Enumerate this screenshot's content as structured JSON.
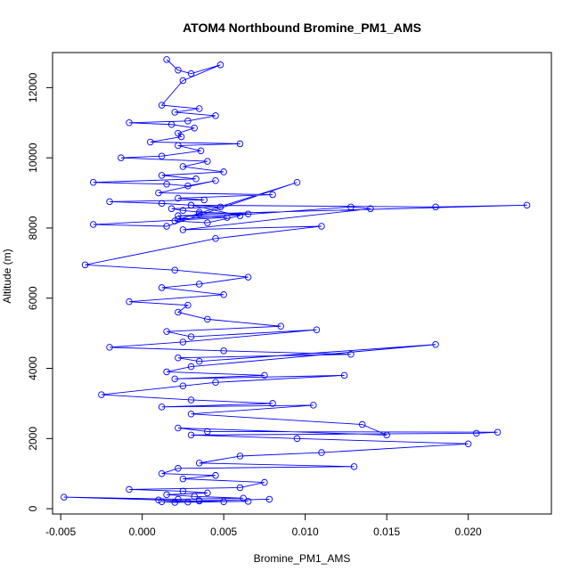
{
  "chart_data": {
    "type": "scatter",
    "title": "ATOM4 Northbound Bromine_PM1_AMS",
    "xlabel": "Bromine_PM1_AMS",
    "ylabel": "Altitude (m)",
    "xlim": [
      -0.0055,
      0.0251
    ],
    "ylim": [
      -150,
      13000
    ],
    "x_ticks": [
      -0.005,
      0.0,
      0.005,
      0.01,
      0.015,
      0.02
    ],
    "x_tick_labels": [
      "-0.005",
      "0.000",
      "0.005",
      "0.010",
      "0.015",
      "0.020"
    ],
    "y_ticks": [
      0,
      2000,
      4000,
      6000,
      8000,
      10000,
      12000
    ],
    "y_tick_labels": [
      "0",
      "2000",
      "4000",
      "6000",
      "8000",
      "10000",
      "12000"
    ],
    "grid": false,
    "legend": "none",
    "series_color": "#0000ff",
    "series": [
      {
        "connected": true,
        "x": [
          0.0015,
          0.0022,
          0.003,
          0.0048,
          0.0025,
          0.0012,
          0.0035,
          0.002,
          0.0045,
          0.0028,
          -0.0008,
          0.0018,
          0.0032,
          0.0022,
          0.0024,
          0.0005,
          0.006,
          0.0022,
          0.0036,
          0.0012,
          -0.0013,
          0.004,
          0.0025,
          0.005,
          0.0012,
          0.0033,
          -0.003,
          0.0015,
          0.0028,
          0.0045,
          0.001,
          0.008,
          0.0022,
          0.0038,
          -0.002,
          0.0012,
          0.003,
          0.0048,
          0.0018,
          0.0025,
          0.0035,
          0.0065,
          0.0022,
          0.0052,
          -0.003,
          0.0015,
          0.0095,
          0.002,
          0.004,
          0.006,
          0.003,
          0.018,
          0.0236,
          0.0035,
          0.0022,
          0.0128,
          0.014,
          0.0025,
          0.011,
          0.0045,
          -0.0035,
          0.002,
          0.0065,
          0.0035,
          0.0012,
          0.005,
          -0.0008,
          0.0028,
          0.0022,
          0.004,
          0.0085,
          0.0015,
          0.003,
          0.0107,
          0.0025,
          -0.002,
          0.005,
          0.0128,
          0.0022,
          0.0035,
          0.018,
          0.003,
          0.0015,
          0.0075,
          0.002,
          0.0124,
          0.0045,
          0.0025,
          -0.0025,
          0.003,
          0.008,
          0.0012,
          0.0105,
          0.003,
          0.0135,
          0.015,
          0.0022,
          0.004,
          0.0218,
          0.0205,
          0.003,
          0.0095,
          0.02,
          0.011,
          0.006,
          0.0035,
          0.013,
          0.0022,
          0.0012,
          0.0045,
          0.0025,
          0.0075,
          0.006,
          -0.0008,
          0.0025,
          0.004,
          0.0015,
          0.0032,
          0.0062,
          0.0022,
          -0.0048,
          0.001,
          0.0035,
          0.005,
          0.0028,
          0.0065,
          0.002,
          0.0012,
          0.0078,
          0.0035
        ],
        "y": [
          12800,
          12500,
          12400,
          12650,
          12200,
          11500,
          11400,
          11300,
          11200,
          11050,
          11000,
          10950,
          10850,
          10700,
          10600,
          10450,
          10400,
          10350,
          10200,
          10050,
          10000,
          9900,
          9750,
          9600,
          9500,
          9400,
          9300,
          9250,
          9200,
          9350,
          9000,
          8950,
          8850,
          8800,
          8750,
          8700,
          8650,
          8600,
          8550,
          8500,
          8450,
          8400,
          8350,
          8300,
          8100,
          8050,
          9300,
          8200,
          8150,
          8350,
          8650,
          8600,
          8650,
          8400,
          8250,
          8600,
          8550,
          7950,
          8050,
          7700,
          6950,
          6800,
          6600,
          6400,
          6300,
          6100,
          5900,
          5800,
          5600,
          5400,
          5200,
          5050,
          4900,
          5100,
          4750,
          4600,
          4500,
          4400,
          4300,
          4200,
          4680,
          4050,
          3900,
          3800,
          3700,
          3800,
          3600,
          3500,
          3250,
          3100,
          3000,
          2900,
          2950,
          2700,
          2400,
          2100,
          2300,
          2200,
          2180,
          2150,
          2100,
          2000,
          1850,
          1600,
          1500,
          1300,
          1200,
          1150,
          1000,
          950,
          850,
          750,
          600,
          550,
          500,
          450,
          400,
          350,
          300,
          270,
          330,
          250,
          220,
          200,
          190,
          210,
          180,
          200,
          270,
          230
        ]
      }
    ]
  }
}
